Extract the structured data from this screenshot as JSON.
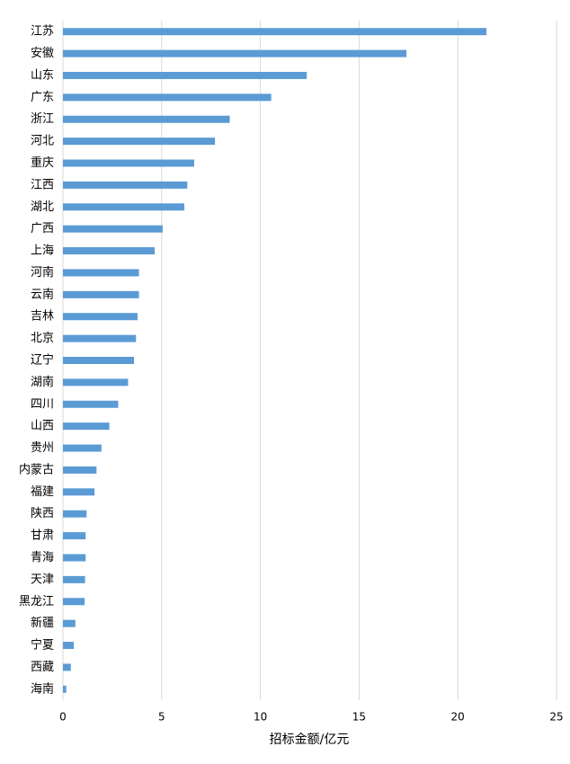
{
  "chart_data": {
    "type": "bar",
    "orientation": "horizontal",
    "x_label": "招标金额/亿元",
    "categories": [
      "江苏",
      "安徽",
      "山东",
      "广东",
      "浙江",
      "河北",
      "重庆",
      "江西",
      "湖北",
      "广西",
      "上海",
      "河南",
      "云南",
      "吉林",
      "北京",
      "辽宁",
      "湖南",
      "四川",
      "山西",
      "贵州",
      "内蒙古",
      "福建",
      "陕西",
      "甘肃",
      "青海",
      "天津",
      "黑龙江",
      "新疆",
      "宁夏",
      "西藏",
      "海南"
    ],
    "values": [
      21.45,
      17.4,
      12.35,
      10.55,
      8.45,
      7.7,
      6.65,
      6.3,
      6.15,
      5.05,
      4.65,
      3.85,
      3.85,
      3.78,
      3.7,
      3.6,
      3.3,
      2.8,
      2.35,
      1.95,
      1.7,
      1.6,
      1.2,
      1.15,
      1.15,
      1.12,
      1.1,
      0.63,
      0.55,
      0.4,
      0.17
    ],
    "color": "#5b9bd5",
    "xlim": [
      0,
      25
    ],
    "xticks": [
      0,
      5,
      10,
      15,
      20,
      25
    ],
    "grid": true
  }
}
